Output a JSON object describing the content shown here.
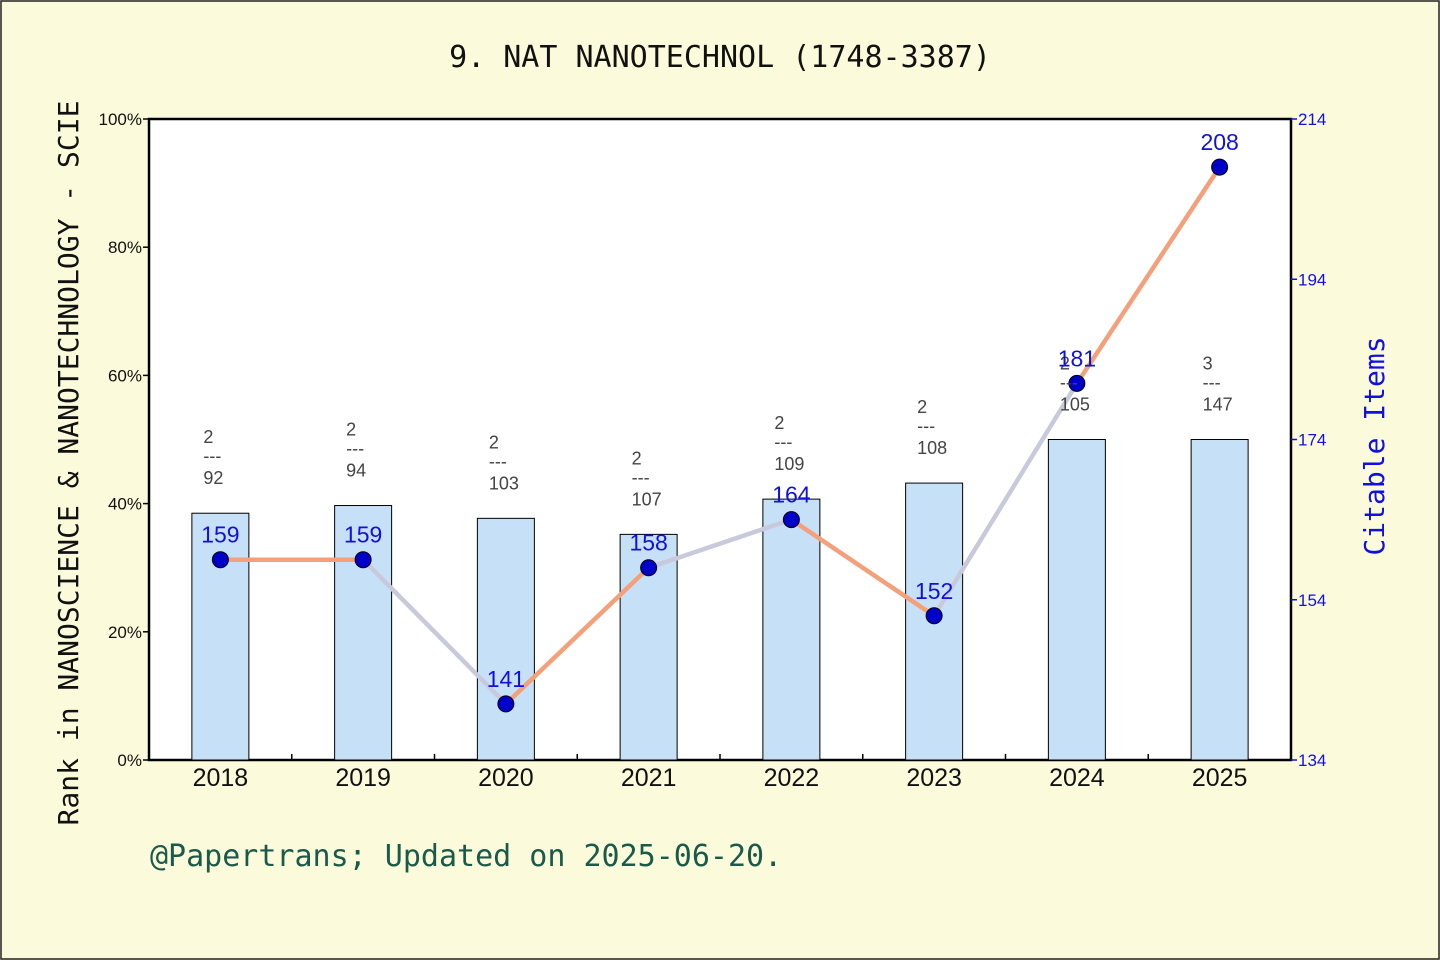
{
  "header": {
    "title": "9. NAT NANOTECHNOL (1748-3387)"
  },
  "footer": {
    "credit": "@Papertrans; Updated on 2025-06-20."
  },
  "colors": {
    "background": "#fbfbdc",
    "bar_fill": "#c6e0f8",
    "line": "#f4a07a",
    "line_segment_alt": "#c9c9dc",
    "point": "#0000c8",
    "right_axis": "#1010e0"
  },
  "chart_data": {
    "type": "bar+line",
    "categories": [
      "2018",
      "2019",
      "2020",
      "2021",
      "2022",
      "2023",
      "2024",
      "2025"
    ],
    "y_left": {
      "label": "Rank in NANOSCIENCE & NANOTECHNOLOGY - SCIE",
      "range": [
        0,
        100
      ],
      "ticks": [
        "0%",
        "20%",
        "40%",
        "60%",
        "80%",
        "100%"
      ]
    },
    "y_right": {
      "label": "Citable Items",
      "range": [
        134,
        214
      ],
      "ticks": [
        "134",
        "154",
        "174",
        "194",
        "214"
      ]
    },
    "bars": {
      "axis": "left",
      "values": [
        38.5,
        39.7,
        37.7,
        35.2,
        40.7,
        43.2,
        50.0,
        50.0
      ],
      "rank_labels": [
        {
          "rank": "2",
          "total": "92"
        },
        {
          "rank": "2",
          "total": "94"
        },
        {
          "rank": "2",
          "total": "103"
        },
        {
          "rank": "2",
          "total": "107"
        },
        {
          "rank": "2",
          "total": "109"
        },
        {
          "rank": "2",
          "total": "108"
        },
        {
          "rank": "2",
          "total": "105"
        },
        {
          "rank": "3",
          "total": "147"
        }
      ],
      "rank_separator": "---"
    },
    "line": {
      "axis": "right",
      "values": [
        159,
        159,
        141,
        158,
        164,
        152,
        181,
        208
      ],
      "labels": [
        "159",
        "159",
        "141",
        "158",
        "164",
        "152",
        "181",
        "208"
      ]
    },
    "grid": false,
    "legend": "none"
  }
}
